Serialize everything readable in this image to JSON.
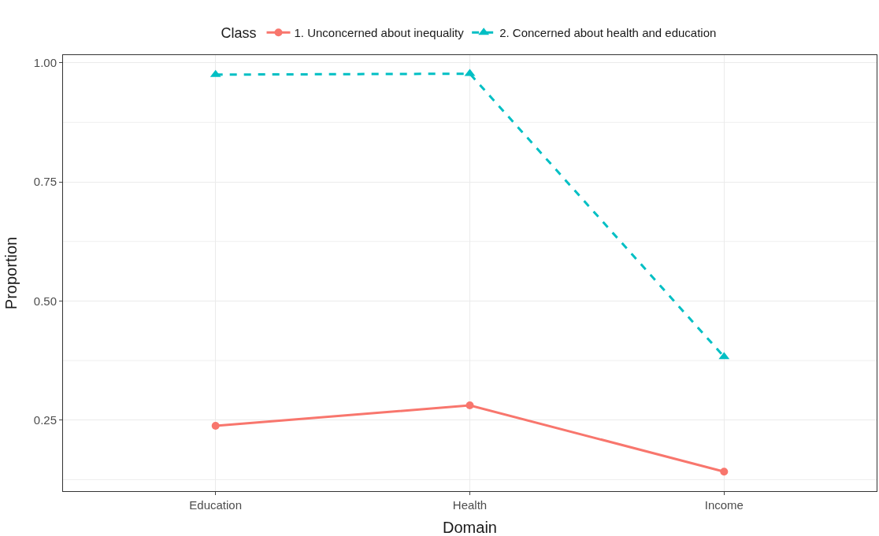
{
  "chart_data": {
    "type": "line",
    "xlabel": "Domain",
    "ylabel": "Proportion",
    "legend_title": "Class",
    "legend": "top",
    "grid": true,
    "categories": [
      "Education",
      "Health",
      "Income"
    ],
    "ylim": [
      0.101,
      1.016
    ],
    "yticks": [
      {
        "value": 0.25,
        "label": "0.25"
      },
      {
        "value": 0.5,
        "label": "0.50"
      },
      {
        "value": 0.75,
        "label": "0.75"
      },
      {
        "value": 1.0,
        "label": "1.00"
      }
    ],
    "series": [
      {
        "name": "1. Unconcerned about inequality",
        "color": "#f8766d",
        "marker": "circle",
        "line_style": "solid",
        "values": [
          0.238,
          0.281,
          0.142
        ]
      },
      {
        "name": "2. Concerned about health and education",
        "color": "#00bfc4",
        "marker": "triangle",
        "line_style": "dashed",
        "values": [
          0.975,
          0.977,
          0.383
        ]
      }
    ]
  }
}
